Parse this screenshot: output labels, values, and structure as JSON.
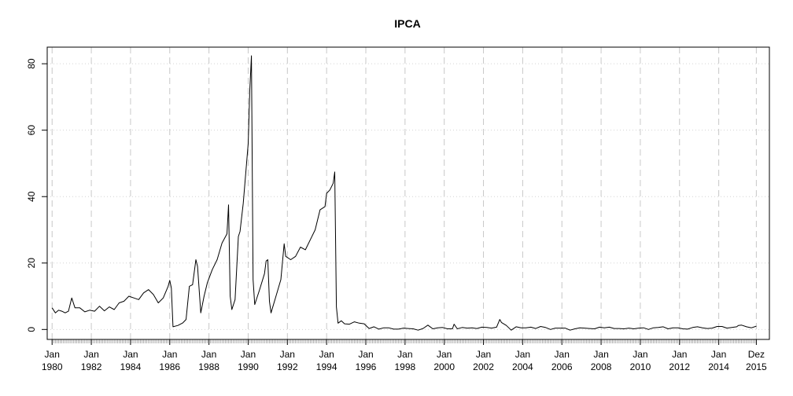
{
  "chart_data": {
    "type": "line",
    "title": "IPCA",
    "xlabel": "",
    "ylabel": "",
    "ylim": [
      -3,
      85
    ],
    "yticks": [
      0,
      20,
      40,
      60,
      80
    ],
    "x_range": [
      "1979-10",
      "2016-08"
    ],
    "grid": true,
    "legend": "none",
    "xticks": [
      {
        "month": "Jan",
        "year": "1980",
        "date": "1980-01"
      },
      {
        "month": "Jan",
        "year": "1982",
        "date": "1982-01"
      },
      {
        "month": "Jan",
        "year": "1984",
        "date": "1984-01"
      },
      {
        "month": "Jan",
        "year": "1986",
        "date": "1986-01"
      },
      {
        "month": "Jan",
        "year": "1988",
        "date": "1988-01"
      },
      {
        "month": "Jan",
        "year": "1990",
        "date": "1990-01"
      },
      {
        "month": "Jan",
        "year": "1992",
        "date": "1992-01"
      },
      {
        "month": "Jan",
        "year": "1994",
        "date": "1994-01"
      },
      {
        "month": "Jan",
        "year": "1996",
        "date": "1996-01"
      },
      {
        "month": "Jan",
        "year": "1998",
        "date": "1998-01"
      },
      {
        "month": "Jan",
        "year": "2000",
        "date": "2000-01"
      },
      {
        "month": "Jan",
        "year": "2002",
        "date": "2002-01"
      },
      {
        "month": "Jan",
        "year": "2004",
        "date": "2004-01"
      },
      {
        "month": "Jan",
        "year": "2006",
        "date": "2006-01"
      },
      {
        "month": "Jan",
        "year": "2008",
        "date": "2008-01"
      },
      {
        "month": "Jan",
        "year": "2010",
        "date": "2010-01"
      },
      {
        "month": "Jan",
        "year": "2012",
        "date": "2012-01"
      },
      {
        "month": "Jan",
        "year": "2014",
        "date": "2014-01"
      },
      {
        "month": "Dez",
        "year": "2015",
        "date": "2015-12"
      }
    ],
    "series": [
      {
        "color": "#000000",
        "points": [
          [
            "1980-01",
            6.5
          ],
          [
            "1980-03",
            5.0
          ],
          [
            "1980-05",
            5.8
          ],
          [
            "1980-07",
            5.5
          ],
          [
            "1980-09",
            5.0
          ],
          [
            "1980-11",
            5.5
          ],
          [
            "1981-01",
            9.5
          ],
          [
            "1981-03",
            6.5
          ],
          [
            "1981-06",
            6.5
          ],
          [
            "1981-09",
            5.3
          ],
          [
            "1981-12",
            5.8
          ],
          [
            "1982-03",
            5.5
          ],
          [
            "1982-06",
            7.0
          ],
          [
            "1982-09",
            5.6
          ],
          [
            "1982-12",
            6.8
          ],
          [
            "1983-03",
            6.0
          ],
          [
            "1983-06",
            8.0
          ],
          [
            "1983-09",
            8.5
          ],
          [
            "1983-12",
            10.0
          ],
          [
            "1984-03",
            9.5
          ],
          [
            "1984-06",
            9.0
          ],
          [
            "1984-09",
            11.0
          ],
          [
            "1984-12",
            12.0
          ],
          [
            "1985-03",
            10.5
          ],
          [
            "1985-06",
            8.0
          ],
          [
            "1985-09",
            9.5
          ],
          [
            "1985-12",
            13.0
          ],
          [
            "1986-01",
            14.8
          ],
          [
            "1986-02",
            12.5
          ],
          [
            "1986-03",
            0.8
          ],
          [
            "1986-06",
            1.2
          ],
          [
            "1986-09",
            2.0
          ],
          [
            "1986-11",
            3.0
          ],
          [
            "1987-01",
            13.0
          ],
          [
            "1987-03",
            13.5
          ],
          [
            "1987-05",
            21.0
          ],
          [
            "1987-06",
            19.0
          ],
          [
            "1987-08",
            5.0
          ],
          [
            "1987-10",
            10.0
          ],
          [
            "1987-12",
            14.0
          ],
          [
            "1988-03",
            18.0
          ],
          [
            "1988-06",
            21.0
          ],
          [
            "1988-09",
            26.0
          ],
          [
            "1988-12",
            28.8
          ],
          [
            "1989-01",
            37.5
          ],
          [
            "1989-02",
            10.0
          ],
          [
            "1989-03",
            6.0
          ],
          [
            "1989-05",
            9.0
          ],
          [
            "1989-07",
            28.0
          ],
          [
            "1989-08",
            29.5
          ],
          [
            "1989-10",
            38.0
          ],
          [
            "1989-12",
            50.0
          ],
          [
            "1990-01",
            56.0
          ],
          [
            "1990-02",
            72.0
          ],
          [
            "1990-03",
            82.4
          ],
          [
            "1990-04",
            15.0
          ],
          [
            "1990-05",
            7.5
          ],
          [
            "1990-08",
            12.0
          ],
          [
            "1990-11",
            16.8
          ],
          [
            "1990-12",
            20.6
          ],
          [
            "1991-01",
            21.0
          ],
          [
            "1991-02",
            8.5
          ],
          [
            "1991-03",
            5.0
          ],
          [
            "1991-06",
            10.0
          ],
          [
            "1991-09",
            15.0
          ],
          [
            "1991-11",
            25.8
          ],
          [
            "1991-12",
            22.0
          ],
          [
            "1992-03",
            21.0
          ],
          [
            "1992-06",
            22.0
          ],
          [
            "1992-09",
            24.8
          ],
          [
            "1992-12",
            24.0
          ],
          [
            "1993-03",
            27.0
          ],
          [
            "1993-06",
            30.0
          ],
          [
            "1993-09",
            36.0
          ],
          [
            "1993-12",
            37.0
          ],
          [
            "1994-01",
            41.0
          ],
          [
            "1994-03",
            42.0
          ],
          [
            "1994-05",
            44.0
          ],
          [
            "1994-06",
            47.4
          ],
          [
            "1994-07",
            6.8
          ],
          [
            "1994-08",
            1.9
          ],
          [
            "1994-10",
            2.6
          ],
          [
            "1994-12",
            1.7
          ],
          [
            "1995-03",
            1.6
          ],
          [
            "1995-06",
            2.3
          ],
          [
            "1995-09",
            1.9
          ],
          [
            "1995-12",
            1.7
          ],
          [
            "1996-03",
            0.3
          ],
          [
            "1996-06",
            0.8
          ],
          [
            "1996-09",
            0.1
          ],
          [
            "1996-12",
            0.5
          ],
          [
            "1997-03",
            0.5
          ],
          [
            "1997-06",
            0.1
          ],
          [
            "1997-09",
            0.1
          ],
          [
            "1997-12",
            0.4
          ],
          [
            "1998-03",
            0.3
          ],
          [
            "1998-06",
            0.2
          ],
          [
            "1998-09",
            -0.2
          ],
          [
            "1998-12",
            0.3
          ],
          [
            "1999-03",
            1.3
          ],
          [
            "1999-06",
            0.2
          ],
          [
            "1999-09",
            0.5
          ],
          [
            "1999-12",
            0.6
          ],
          [
            "2000-03",
            0.2
          ],
          [
            "2000-06",
            0.2
          ],
          [
            "2000-07",
            1.6
          ],
          [
            "2000-09",
            0.2
          ],
          [
            "2000-12",
            0.6
          ],
          [
            "2001-03",
            0.4
          ],
          [
            "2001-06",
            0.5
          ],
          [
            "2001-09",
            0.3
          ],
          [
            "2001-12",
            0.7
          ],
          [
            "2002-03",
            0.6
          ],
          [
            "2002-06",
            0.4
          ],
          [
            "2002-09",
            0.7
          ],
          [
            "2002-11",
            3.0
          ],
          [
            "2002-12",
            2.1
          ],
          [
            "2003-03",
            1.2
          ],
          [
            "2003-06",
            -0.2
          ],
          [
            "2003-09",
            0.8
          ],
          [
            "2003-12",
            0.5
          ],
          [
            "2004-03",
            0.5
          ],
          [
            "2004-06",
            0.7
          ],
          [
            "2004-09",
            0.3
          ],
          [
            "2004-12",
            0.9
          ],
          [
            "2005-03",
            0.6
          ],
          [
            "2005-06",
            -0.0
          ],
          [
            "2005-09",
            0.4
          ],
          [
            "2005-12",
            0.4
          ],
          [
            "2006-03",
            0.4
          ],
          [
            "2006-06",
            -0.2
          ],
          [
            "2006-09",
            0.2
          ],
          [
            "2006-12",
            0.5
          ],
          [
            "2007-03",
            0.4
          ],
          [
            "2007-06",
            0.3
          ],
          [
            "2007-09",
            0.2
          ],
          [
            "2007-12",
            0.7
          ],
          [
            "2008-03",
            0.5
          ],
          [
            "2008-06",
            0.7
          ],
          [
            "2008-09",
            0.3
          ],
          [
            "2008-12",
            0.3
          ],
          [
            "2009-03",
            0.2
          ],
          [
            "2009-06",
            0.4
          ],
          [
            "2009-09",
            0.2
          ],
          [
            "2009-12",
            0.4
          ],
          [
            "2010-03",
            0.5
          ],
          [
            "2010-06",
            0.0
          ],
          [
            "2010-09",
            0.5
          ],
          [
            "2010-12",
            0.6
          ],
          [
            "2011-03",
            0.8
          ],
          [
            "2011-06",
            0.2
          ],
          [
            "2011-09",
            0.5
          ],
          [
            "2011-12",
            0.5
          ],
          [
            "2012-03",
            0.2
          ],
          [
            "2012-06",
            0.1
          ],
          [
            "2012-09",
            0.6
          ],
          [
            "2012-12",
            0.8
          ],
          [
            "2013-03",
            0.5
          ],
          [
            "2013-06",
            0.3
          ],
          [
            "2013-09",
            0.4
          ],
          [
            "2013-12",
            0.9
          ],
          [
            "2014-03",
            0.9
          ],
          [
            "2014-06",
            0.4
          ],
          [
            "2014-09",
            0.6
          ],
          [
            "2014-12",
            0.8
          ],
          [
            "2015-01",
            1.2
          ],
          [
            "2015-03",
            1.3
          ],
          [
            "2015-06",
            0.8
          ],
          [
            "2015-09",
            0.5
          ],
          [
            "2015-12",
            1.0
          ]
        ]
      }
    ]
  }
}
